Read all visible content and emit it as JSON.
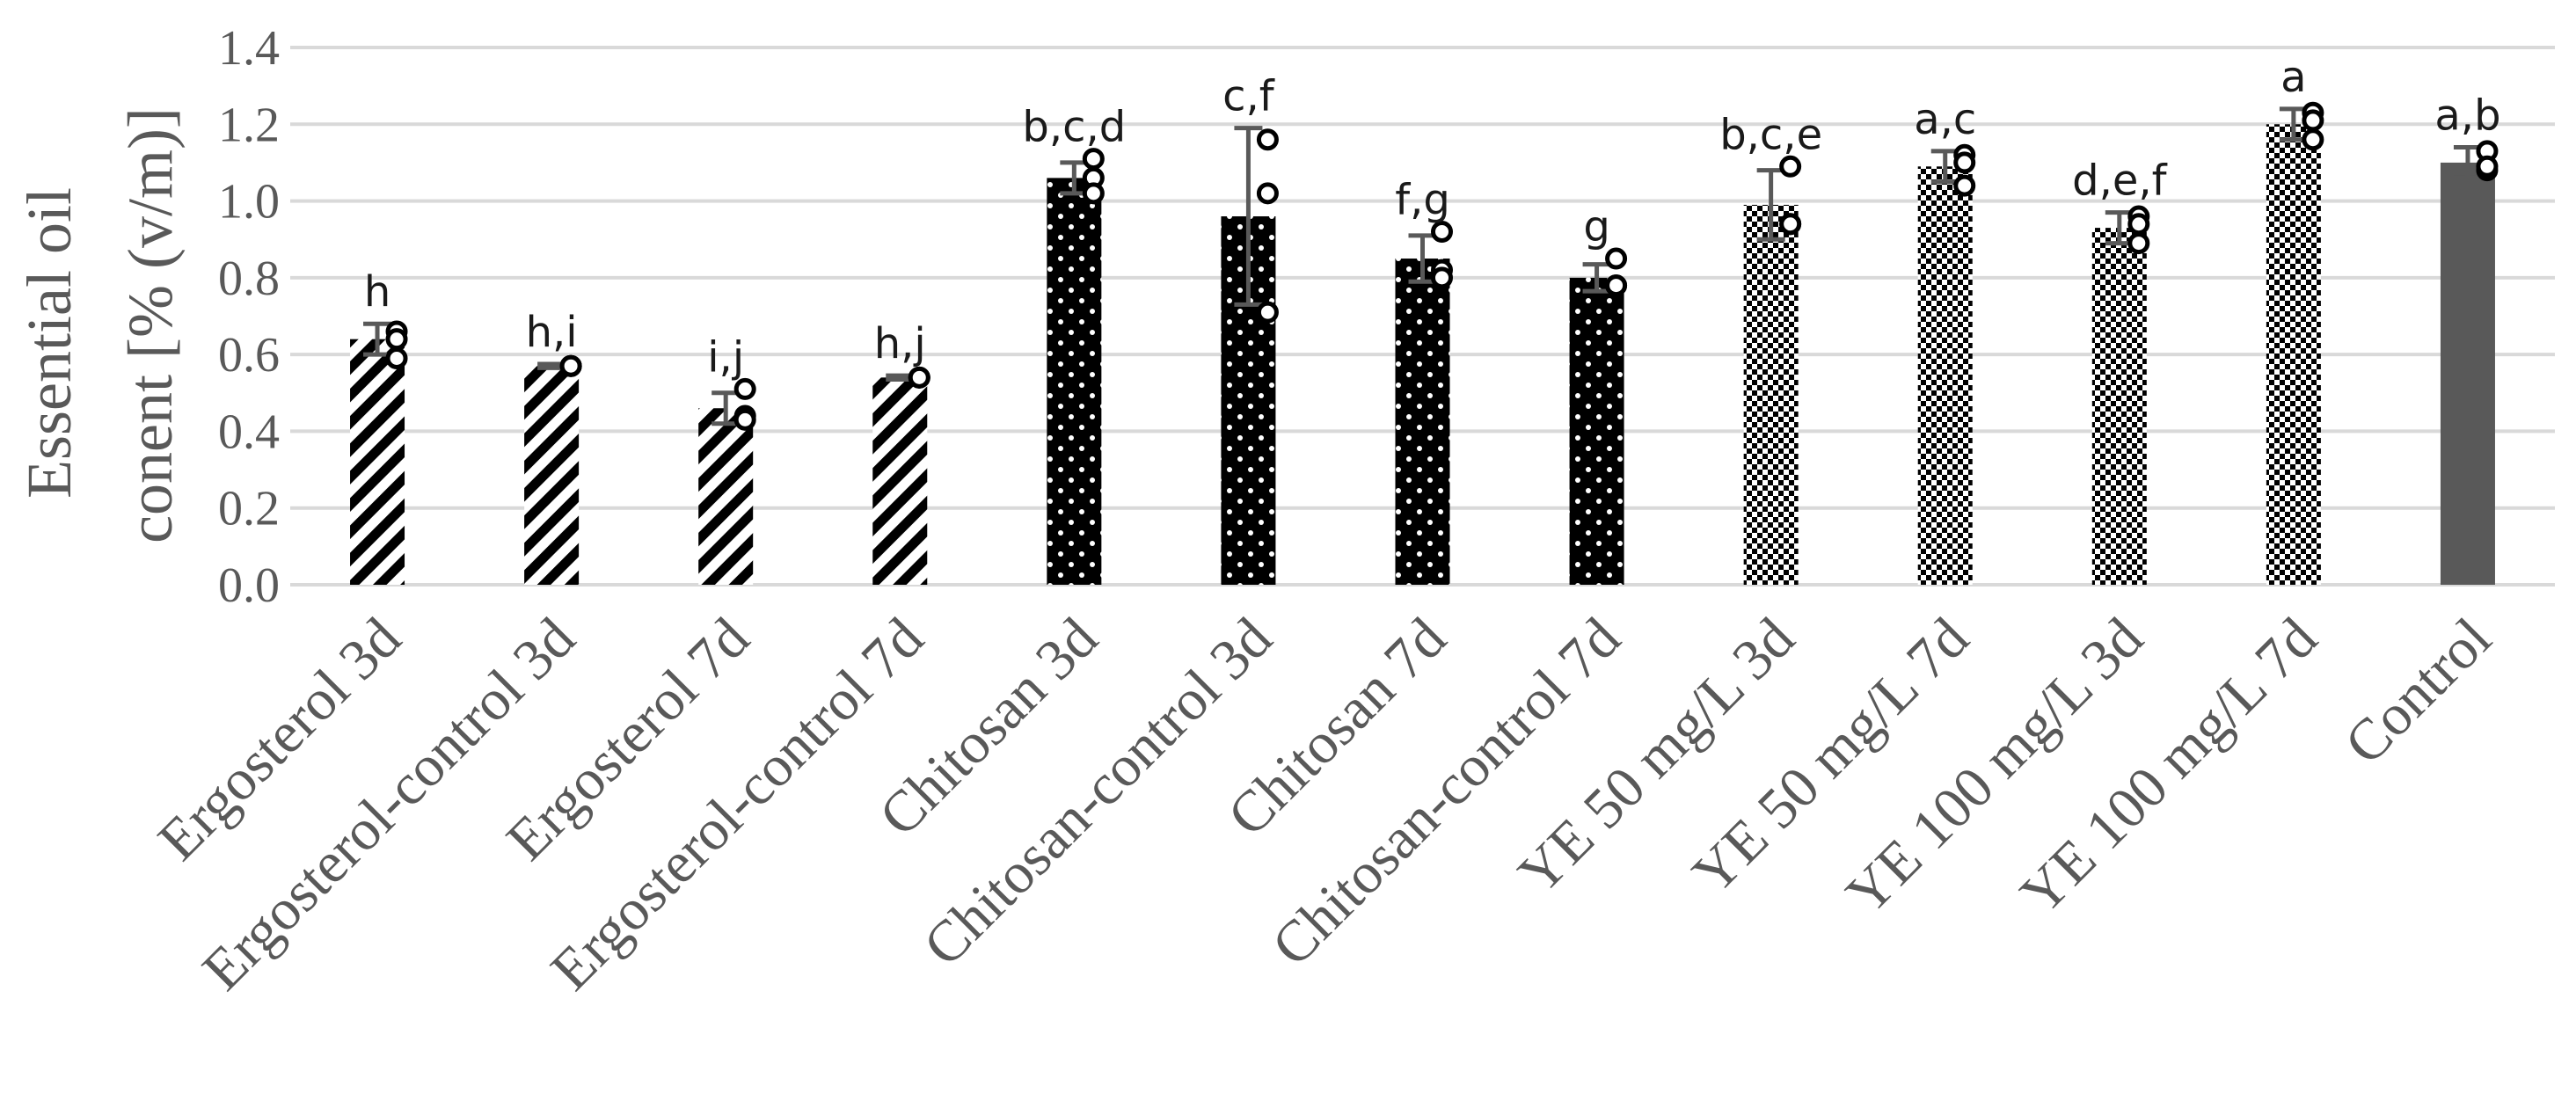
{
  "chart_data": {
    "type": "bar",
    "title": "",
    "xlabel": "",
    "ylabel_line1": "Essential oil",
    "ylabel_line2": "conent [%  (v/m)]",
    "ylim": [
      0,
      1.4
    ],
    "y_ticks": [
      "0.0",
      "0.2",
      "0.4",
      "0.6",
      "0.8",
      "1.0",
      "1.2",
      "1.4"
    ],
    "grid": true,
    "categories": [
      "Ergosterol 3d",
      "Ergosterol-control 3d",
      "Ergosterol 7d",
      "Ergosterol-control 7d",
      "Chitosan 3d",
      "Chitosan-control 3d",
      "Chitosan 7d",
      "Chitosan-control 7d",
      "YE 50 mg/L 3d",
      "YE 50 mg/L 7d",
      "YE 100 mg/L 3d",
      "YE 100 mg/L 7d",
      "Control"
    ],
    "values": [
      0.64,
      0.57,
      0.46,
      0.54,
      1.06,
      0.96,
      0.85,
      0.8,
      0.99,
      1.09,
      0.93,
      1.2,
      1.1
    ],
    "errors": [
      0.04,
      0.005,
      0.04,
      0.005,
      0.04,
      0.23,
      0.06,
      0.035,
      0.09,
      0.04,
      0.04,
      0.04,
      0.04
    ],
    "significance_labels": [
      "h",
      "h,i",
      "i,j",
      "h,j",
      "b,c,d",
      "c,f",
      "f,g",
      "g",
      "b,c,e",
      "a,c",
      "d,e,f",
      "a",
      "a,b"
    ],
    "replicate_points": [
      [
        0.66,
        0.59,
        0.64
      ],
      [
        0.57,
        0.57,
        0.57
      ],
      [
        0.51,
        0.44,
        0.43
      ],
      [
        0.54,
        0.54,
        0.54
      ],
      [
        1.11,
        1.06,
        1.02
      ],
      [
        1.16,
        1.02,
        0.71
      ],
      [
        0.92,
        0.82,
        0.8
      ],
      [
        0.85,
        0.78,
        0.78
      ],
      [
        1.09,
        0.94,
        0.94
      ],
      [
        1.12,
        1.04,
        1.1
      ],
      [
        0.96,
        0.94,
        0.89
      ],
      [
        1.23,
        1.16,
        1.21
      ],
      [
        1.13,
        1.08,
        1.09
      ]
    ],
    "bar_patterns": [
      "diagonal-stripes",
      "diagonal-stripes",
      "diagonal-stripes",
      "diagonal-stripes",
      "dots-on-black",
      "dots-on-black",
      "dots-on-black",
      "dots-on-black",
      "checker",
      "checker",
      "checker",
      "checker",
      "solid-gray"
    ],
    "colors": {
      "bar_dark": "#000000",
      "control_fill": "#595959",
      "grid": "#d9d9d9",
      "text": "#595959",
      "error_bar": "#595959"
    }
  }
}
